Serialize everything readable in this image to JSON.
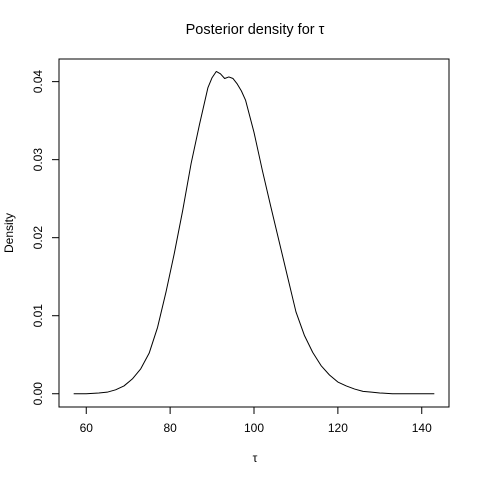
{
  "chart_data": {
    "type": "line",
    "title": "Posterior density for τ",
    "xlabel": "τ",
    "ylabel": "Density",
    "xlim": [
      53.5,
      146.5
    ],
    "ylim": [
      -0.0017,
      0.0429
    ],
    "x_ticks": [
      60,
      80,
      100,
      120,
      140
    ],
    "y_ticks": [
      0.0,
      0.01,
      0.02,
      0.03,
      0.04
    ],
    "x_tick_labels": [
      "60",
      "80",
      "100",
      "120",
      "140"
    ],
    "y_tick_labels": [
      "0.00",
      "0.01",
      "0.02",
      "0.03",
      "0.04"
    ],
    "grid": false,
    "series": [
      {
        "color": "#000000",
        "x": [
          57,
          60,
          63,
          65,
          67,
          69,
          71,
          73,
          75,
          77,
          79,
          81,
          83,
          85,
          87,
          89,
          90,
          91,
          92,
          93,
          94,
          95,
          96,
          97,
          98,
          100,
          102,
          104,
          106,
          108,
          110,
          112,
          114,
          116,
          118,
          120,
          122,
          124,
          126,
          128,
          130,
          133,
          136,
          140,
          143
        ],
        "y": [
          0.0,
          0.0,
          0.0001,
          0.0002,
          0.0005,
          0.001,
          0.0019,
          0.0032,
          0.0052,
          0.0085,
          0.013,
          0.018,
          0.0235,
          0.0295,
          0.0345,
          0.0392,
          0.0405,
          0.0413,
          0.041,
          0.0404,
          0.0406,
          0.0404,
          0.0397,
          0.0388,
          0.0376,
          0.0335,
          0.0286,
          0.024,
          0.0195,
          0.015,
          0.0105,
          0.0075,
          0.0053,
          0.0036,
          0.0024,
          0.0015,
          0.001,
          0.0006,
          0.0003,
          0.0002,
          0.0001,
          0.0,
          0.0,
          0.0,
          0.0
        ]
      }
    ]
  }
}
